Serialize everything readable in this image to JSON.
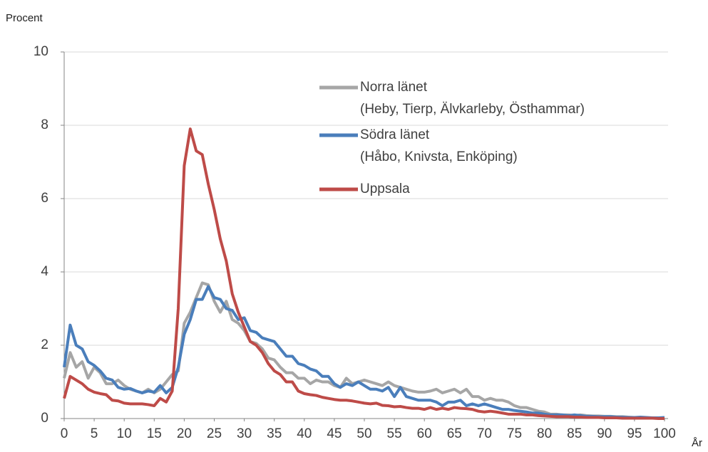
{
  "chart_data": {
    "type": "line",
    "ylabel": "Procent",
    "xlabel": "År",
    "xlim": [
      0,
      100
    ],
    "ylim": [
      0,
      10
    ],
    "xticks": [
      0,
      5,
      10,
      15,
      20,
      25,
      30,
      35,
      40,
      45,
      50,
      55,
      60,
      65,
      70,
      75,
      80,
      85,
      90,
      95,
      100
    ],
    "yticks": [
      0,
      2,
      4,
      6,
      8,
      10
    ],
    "grid": true,
    "legend": "upper right",
    "x": [
      0,
      1,
      2,
      3,
      4,
      5,
      6,
      7,
      8,
      9,
      10,
      11,
      12,
      13,
      14,
      15,
      16,
      17,
      18,
      19,
      20,
      21,
      22,
      23,
      24,
      25,
      26,
      27,
      28,
      29,
      30,
      31,
      32,
      33,
      34,
      35,
      36,
      37,
      38,
      39,
      40,
      41,
      42,
      43,
      44,
      45,
      46,
      47,
      48,
      49,
      50,
      51,
      52,
      53,
      54,
      55,
      56,
      57,
      58,
      59,
      60,
      61,
      62,
      63,
      64,
      65,
      66,
      67,
      68,
      69,
      70,
      71,
      72,
      73,
      74,
      75,
      76,
      77,
      78,
      79,
      80,
      81,
      82,
      83,
      84,
      85,
      86,
      87,
      88,
      89,
      90,
      91,
      92,
      93,
      94,
      95,
      96,
      97,
      98,
      99,
      100
    ],
    "series": [
      {
        "name": "Norra länet\n(Heby, Tierp, Älvkarleby, Östhammar)",
        "color": "#a6a6a6",
        "values": [
          1.1,
          1.8,
          1.4,
          1.55,
          1.1,
          1.4,
          1.25,
          0.95,
          0.95,
          1.05,
          0.9,
          0.8,
          0.75,
          0.7,
          0.8,
          0.7,
          0.8,
          1.0,
          1.2,
          1.3,
          2.6,
          2.9,
          3.3,
          3.7,
          3.65,
          3.2,
          2.9,
          3.2,
          2.7,
          2.6,
          2.4,
          2.1,
          2.05,
          1.9,
          1.65,
          1.6,
          1.4,
          1.25,
          1.25,
          1.1,
          1.1,
          0.95,
          1.05,
          1.0,
          1.0,
          0.9,
          0.85,
          1.1,
          0.95,
          1.0,
          1.05,
          1.0,
          0.95,
          0.9,
          1.0,
          0.9,
          0.85,
          0.8,
          0.75,
          0.72,
          0.72,
          0.75,
          0.8,
          0.7,
          0.75,
          0.8,
          0.7,
          0.8,
          0.6,
          0.6,
          0.5,
          0.55,
          0.5,
          0.5,
          0.45,
          0.35,
          0.3,
          0.3,
          0.25,
          0.2,
          0.18,
          0.12,
          0.12,
          0.1,
          0.1,
          0.08,
          0.1,
          0.08,
          0.07,
          0.07,
          0.06,
          0.06,
          0.05,
          0.05,
          0.04,
          0.03,
          0.02,
          0.02,
          0.02,
          0.02,
          0.01
        ]
      },
      {
        "name": "Södra länet\n(Håbo, Knivsta, Enköping)",
        "color": "#4a7ebb",
        "values": [
          1.4,
          2.55,
          2.0,
          1.9,
          1.55,
          1.45,
          1.3,
          1.1,
          1.05,
          0.85,
          0.8,
          0.82,
          0.75,
          0.7,
          0.75,
          0.72,
          0.9,
          0.7,
          0.85,
          1.4,
          2.3,
          2.7,
          3.25,
          3.25,
          3.6,
          3.3,
          3.25,
          3.0,
          2.95,
          2.7,
          2.75,
          2.4,
          2.35,
          2.2,
          2.15,
          2.1,
          1.9,
          1.7,
          1.7,
          1.5,
          1.45,
          1.35,
          1.3,
          1.15,
          1.15,
          0.95,
          0.85,
          0.95,
          0.9,
          1.0,
          0.9,
          0.8,
          0.8,
          0.75,
          0.85,
          0.6,
          0.85,
          0.6,
          0.55,
          0.5,
          0.5,
          0.5,
          0.45,
          0.35,
          0.45,
          0.45,
          0.5,
          0.35,
          0.4,
          0.35,
          0.4,
          0.35,
          0.3,
          0.25,
          0.25,
          0.22,
          0.2,
          0.18,
          0.15,
          0.15,
          0.12,
          0.1,
          0.1,
          0.1,
          0.08,
          0.1,
          0.08,
          0.06,
          0.06,
          0.05,
          0.05,
          0.05,
          0.04,
          0.04,
          0.03,
          0.03,
          0.04,
          0.03,
          0.02,
          0.02,
          0.03
        ]
      },
      {
        "name": "Uppsala",
        "color": "#be4b48",
        "values": [
          0.55,
          1.15,
          1.05,
          0.95,
          0.8,
          0.72,
          0.68,
          0.65,
          0.5,
          0.48,
          0.42,
          0.4,
          0.4,
          0.4,
          0.38,
          0.35,
          0.55,
          0.45,
          0.75,
          3.0,
          6.9,
          7.9,
          7.3,
          7.2,
          6.4,
          5.7,
          4.9,
          4.3,
          3.4,
          2.9,
          2.5,
          2.1,
          2.0,
          1.8,
          1.5,
          1.3,
          1.2,
          1.0,
          1.0,
          0.75,
          0.68,
          0.65,
          0.63,
          0.58,
          0.55,
          0.52,
          0.5,
          0.5,
          0.48,
          0.45,
          0.42,
          0.4,
          0.42,
          0.36,
          0.35,
          0.32,
          0.33,
          0.3,
          0.28,
          0.28,
          0.25,
          0.3,
          0.25,
          0.28,
          0.25,
          0.3,
          0.28,
          0.27,
          0.25,
          0.2,
          0.18,
          0.2,
          0.18,
          0.15,
          0.12,
          0.12,
          0.12,
          0.1,
          0.1,
          0.08,
          0.07,
          0.06,
          0.05,
          0.05,
          0.05,
          0.04,
          0.04,
          0.03,
          0.03,
          0.03,
          0.02,
          0.02,
          0.02,
          0.01,
          0.01,
          0.01,
          0.01,
          0.01,
          0.01,
          0,
          0
        ]
      }
    ]
  }
}
